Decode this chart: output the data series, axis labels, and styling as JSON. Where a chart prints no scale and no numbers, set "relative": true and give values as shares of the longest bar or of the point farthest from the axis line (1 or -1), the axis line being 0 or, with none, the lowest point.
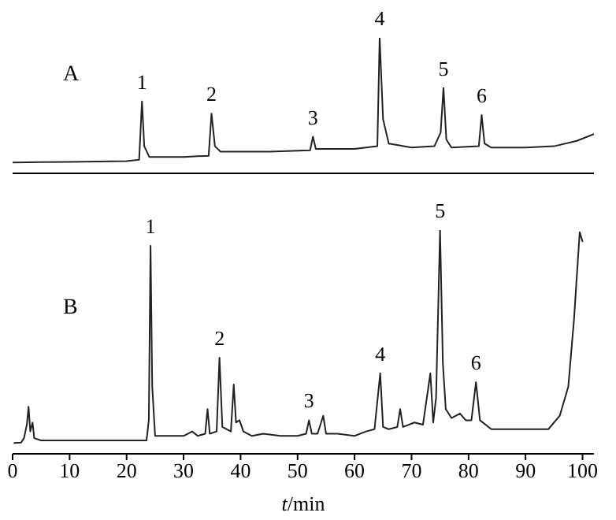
{
  "chart_data": [
    {
      "type": "line",
      "title": "A",
      "relative": true,
      "xlim": [
        0,
        102
      ],
      "xticks": [
        0,
        10,
        20,
        30,
        40,
        50,
        60,
        70,
        80,
        90,
        100
      ],
      "tick_labels": false,
      "series": [
        {
          "color": "#222222",
          "x": [
            0,
            5,
            10,
            20,
            22.2,
            22.7,
            23.1,
            24,
            30,
            34.4,
            34.9,
            35.5,
            36.5,
            45,
            52.2,
            52.7,
            53.2,
            60,
            64,
            64.4,
            65,
            66,
            70,
            74,
            75.1,
            75.6,
            76.1,
            77,
            81.8,
            82.3,
            82.8,
            84,
            90,
            95,
            99,
            102
          ],
          "values": [
            0.08,
            0.083,
            0.085,
            0.09,
            0.1,
            0.53,
            0.2,
            0.12,
            0.12,
            0.13,
            0.44,
            0.2,
            0.16,
            0.16,
            0.17,
            0.27,
            0.18,
            0.18,
            0.2,
            1,
            0.4,
            0.22,
            0.19,
            0.2,
            0.3,
            0.63,
            0.25,
            0.19,
            0.2,
            0.43,
            0.22,
            0.19,
            0.19,
            0.2,
            0.24,
            0.29
          ]
        }
      ],
      "annotations": [
        {
          "text": "1",
          "x": 22.7,
          "y": 0.53
        },
        {
          "text": "2",
          "x": 34.9,
          "y": 0.44
        },
        {
          "text": "3",
          "x": 52.7,
          "y": 0.27
        },
        {
          "text": "4",
          "x": 64.4,
          "y": 1
        },
        {
          "text": "5",
          "x": 75.6,
          "y": 0.63
        },
        {
          "text": "6",
          "x": 82.3,
          "y": 0.43
        }
      ]
    },
    {
      "type": "line",
      "title": "B",
      "relative": true,
      "xlabel": "t/min",
      "xlim": [
        0,
        102
      ],
      "xticks": [
        0,
        10,
        20,
        30,
        40,
        50,
        60,
        70,
        80,
        90,
        100
      ],
      "tick_labels": "x",
      "series": [
        {
          "color": "#222222",
          "x": [
            0.3,
            1.5,
            2,
            2.5,
            2.8,
            3.1,
            3.5,
            3.8,
            5,
            10,
            20,
            23.5,
            23.9,
            24.2,
            24.5,
            25,
            30,
            31.5,
            32.5,
            33.8,
            34.2,
            34.6,
            35.8,
            36.3,
            36.8,
            38.3,
            38.8,
            39.2,
            39.8,
            40.5,
            42,
            44,
            47,
            50,
            51.5,
            52,
            52.5,
            53.5,
            54.5,
            55,
            57,
            60,
            62,
            63.5,
            64.5,
            65,
            66,
            67.5,
            68,
            68.5,
            70.5,
            72,
            73.3,
            73.8,
            74.3,
            75,
            75.5,
            76,
            77,
            78.5,
            79.5,
            80.5,
            81.3,
            82,
            84,
            90,
            94,
            96,
            97.5,
            98.5,
            99.5,
            100
          ],
          "values": [
            0.048,
            0.05,
            0.07,
            0.13,
            0.21,
            0.1,
            0.14,
            0.07,
            0.06,
            0.06,
            0.06,
            0.06,
            0.15,
            0.93,
            0.3,
            0.08,
            0.08,
            0.1,
            0.08,
            0.09,
            0.2,
            0.09,
            0.1,
            0.43,
            0.12,
            0.1,
            0.31,
            0.14,
            0.15,
            0.1,
            0.08,
            0.09,
            0.08,
            0.08,
            0.09,
            0.15,
            0.09,
            0.09,
            0.17,
            0.09,
            0.09,
            0.08,
            0.1,
            0.11,
            0.36,
            0.12,
            0.11,
            0.12,
            0.2,
            0.12,
            0.14,
            0.13,
            0.36,
            0.14,
            0.25,
            1,
            0.4,
            0.2,
            0.16,
            0.18,
            0.15,
            0.15,
            0.32,
            0.15,
            0.11,
            0.11,
            0.11,
            0.17,
            0.3,
            0.6,
            0.99,
            0.95
          ]
        }
      ],
      "annotations": [
        {
          "text": "1",
          "x": 24.2,
          "y": 0.93
        },
        {
          "text": "2",
          "x": 36.3,
          "y": 0.43
        },
        {
          "text": "3",
          "x": 52,
          "y": 0.15
        },
        {
          "text": "4",
          "x": 64.5,
          "y": 0.36
        },
        {
          "text": "5",
          "x": 75,
          "y": 1
        },
        {
          "text": "6",
          "x": 81.3,
          "y": 0.32
        }
      ]
    }
  ]
}
